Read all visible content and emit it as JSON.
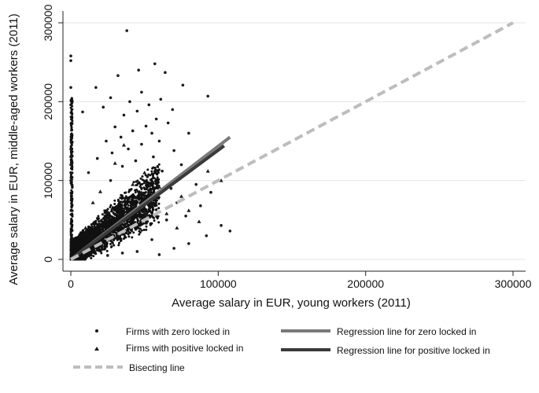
{
  "chart_data": {
    "type": "scatter",
    "xlabel": "Average salary in EUR, young workers (2011)",
    "ylabel": "Average salary in EUR, middle-aged workers (2011)",
    "xlim": [
      0,
      300000
    ],
    "ylim": [
      0,
      300000
    ],
    "xticks": [
      0,
      100000,
      200000,
      300000
    ],
    "yticks": [
      0,
      100000,
      200000,
      300000
    ],
    "xtick_labels": [
      "0",
      "100000",
      "200000",
      "300000"
    ],
    "ytick_labels": [
      "0",
      "100000",
      "200000",
      "300000"
    ],
    "grid": "horizontal",
    "legend_position": "bottom",
    "series": [
      {
        "name": "Firms with zero locked in",
        "marker": "circle",
        "color": "#1a1a1a",
        "points": [
          [
            38000,
            290000
          ],
          [
            0,
            258000
          ],
          [
            0,
            252000
          ],
          [
            57000,
            248000
          ],
          [
            46000,
            240000
          ],
          [
            64000,
            237000
          ],
          [
            32000,
            233000
          ],
          [
            76000,
            221000
          ],
          [
            17000,
            218000
          ],
          [
            0,
            218000
          ],
          [
            48000,
            212000
          ],
          [
            93000,
            207000
          ],
          [
            27000,
            205000
          ],
          [
            61000,
            203000
          ],
          [
            40000,
            200000
          ],
          [
            53000,
            196000
          ],
          [
            0,
            196000
          ],
          [
            22000,
            193000
          ],
          [
            69000,
            190000
          ],
          [
            45000,
            188000
          ],
          [
            36000,
            183000
          ],
          [
            58000,
            178000
          ],
          [
            66000,
            173000
          ],
          [
            8000,
            187000
          ],
          [
            51000,
            169000
          ],
          [
            30000,
            168000
          ],
          [
            42000,
            163000
          ],
          [
            55000,
            160000
          ],
          [
            80000,
            160000
          ],
          [
            34000,
            155000
          ],
          [
            60000,
            150000
          ],
          [
            24000,
            150000
          ],
          [
            48000,
            146000
          ],
          [
            39000,
            140000
          ],
          [
            70000,
            138000
          ],
          [
            28000,
            135000
          ],
          [
            56000,
            130000
          ],
          [
            18000,
            128000
          ],
          [
            44000,
            125000
          ],
          [
            75000,
            120000
          ],
          [
            35000,
            118000
          ],
          [
            62000,
            112000
          ],
          [
            12000,
            110000
          ],
          [
            52000,
            105000
          ],
          [
            27000,
            100000
          ],
          [
            85000,
            95000
          ],
          [
            68000,
            90000
          ],
          [
            40000,
            88000
          ],
          [
            95000,
            85000
          ],
          [
            58000,
            80000
          ],
          [
            72000,
            72000
          ],
          [
            88000,
            68000
          ],
          [
            50000,
            60000
          ],
          [
            78000,
            55000
          ],
          [
            65000,
            50000
          ],
          [
            102000,
            43000
          ],
          [
            108000,
            36000
          ],
          [
            92000,
            30000
          ],
          [
            55000,
            25000
          ],
          [
            80000,
            20000
          ],
          [
            70000,
            14000
          ],
          [
            45000,
            10000
          ],
          [
            35000,
            8000
          ],
          [
            60000,
            6000
          ],
          [
            25000,
            5000
          ],
          [
            0,
            140000
          ],
          [
            0,
            130000
          ],
          [
            0,
            120000
          ],
          [
            0,
            110000
          ],
          [
            0,
            100000
          ]
        ]
      },
      {
        "name": "Firms with positive locked in",
        "marker": "triangle",
        "color": "#1a1a1a",
        "points": [
          [
            36000,
            145000
          ],
          [
            30000,
            122000
          ],
          [
            50000,
            110000
          ],
          [
            93000,
            112000
          ],
          [
            102000,
            100000
          ],
          [
            42000,
            95000
          ],
          [
            60000,
            92000
          ],
          [
            48000,
            85000
          ],
          [
            75000,
            80000
          ],
          [
            55000,
            70000
          ],
          [
            80000,
            62000
          ],
          [
            65000,
            58000
          ],
          [
            87000,
            48000
          ],
          [
            72000,
            40000
          ],
          [
            20000,
            86000
          ],
          [
            15000,
            72000
          ],
          [
            25000,
            60000
          ],
          [
            35000,
            52000
          ],
          [
            45000,
            45000
          ],
          [
            10000,
            40000
          ]
        ]
      },
      {
        "name": "Regression line for zero locked in",
        "type": "line",
        "color": "#7a7a7a",
        "x": [
          0,
          108000
        ],
        "y": [
          0,
          155000
        ]
      },
      {
        "name": "Regression line for positive locked in",
        "type": "line",
        "color": "#3a3a3a",
        "x": [
          0,
          104000
        ],
        "y": [
          0,
          144000
        ]
      },
      {
        "name": "Bisecting line",
        "type": "line",
        "style": "dashed",
        "color": "#bdbdbd",
        "x": [
          0,
          300000
        ],
        "y": [
          0,
          300000
        ]
      }
    ],
    "dense_cloud": {
      "note_free": true,
      "center_x": [
        0,
        60000
      ],
      "center_y": [
        0,
        80000
      ]
    }
  }
}
